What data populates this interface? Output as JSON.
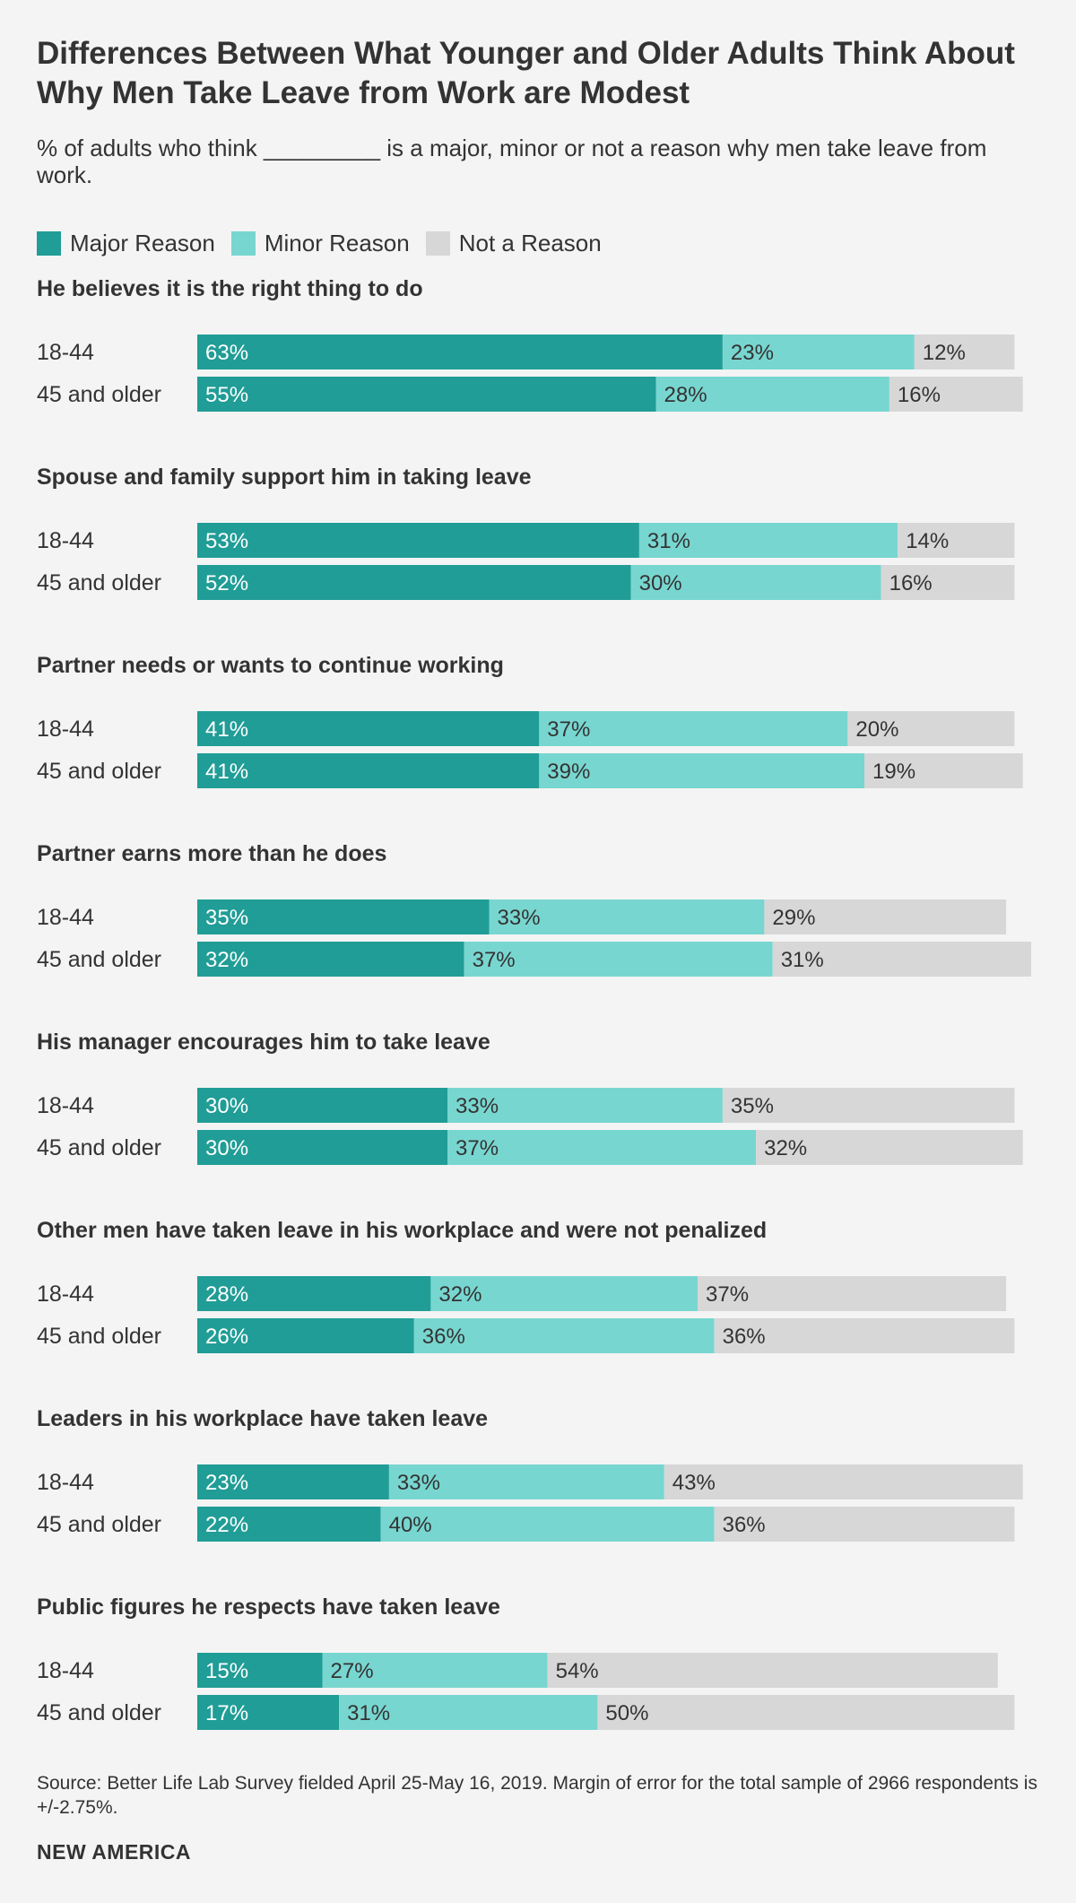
{
  "title": "Differences Between What Younger and Older Adults Think About Why Men Take Leave from Work are Modest",
  "subtitle": "% of adults who think _________ is a major, minor or not a reason why men take leave from work.",
  "legend": [
    {
      "label": "Major Reason",
      "color": "#209d96"
    },
    {
      "label": "Minor Reason",
      "color": "#78d6d0"
    },
    {
      "label": "Not a Reason",
      "color": "#d7d7d7"
    }
  ],
  "source": "Source: Better Life Lab Survey fielded April 25-May 16, 2019. Margin of error for the total sample of 2966 respondents is +/-2.75%.",
  "footer": "NEW AMERICA",
  "chart_data": {
    "type": "bar",
    "orientation": "horizontal-stacked",
    "series_names": [
      "Major Reason",
      "Minor Reason",
      "Not a Reason"
    ],
    "series_colors": [
      "#209d96",
      "#78d6d0",
      "#d7d7d7"
    ],
    "groups": [
      {
        "title": "He believes it is the right thing to do",
        "rows": [
          {
            "label": "18-44",
            "values": [
              63,
              23,
              12
            ]
          },
          {
            "label": "45 and older",
            "values": [
              55,
              28,
              16
            ]
          }
        ]
      },
      {
        "title": "Spouse and family support him in taking leave",
        "rows": [
          {
            "label": "18-44",
            "values": [
              53,
              31,
              14
            ]
          },
          {
            "label": "45 and older",
            "values": [
              52,
              30,
              16
            ]
          }
        ]
      },
      {
        "title": "Partner needs or wants to continue working",
        "rows": [
          {
            "label": "18-44",
            "values": [
              41,
              37,
              20
            ]
          },
          {
            "label": "45 and older",
            "values": [
              41,
              39,
              19
            ]
          }
        ]
      },
      {
        "title": "Partner earns more than he does",
        "rows": [
          {
            "label": "18-44",
            "values": [
              35,
              33,
              29
            ]
          },
          {
            "label": "45 and older",
            "values": [
              32,
              37,
              31
            ]
          }
        ]
      },
      {
        "title": "His manager encourages him to take leave",
        "rows": [
          {
            "label": "18-44",
            "values": [
              30,
              33,
              35
            ]
          },
          {
            "label": "45 and older",
            "values": [
              30,
              37,
              32
            ]
          }
        ]
      },
      {
        "title": "Other men have taken leave in his workplace and were not penalized",
        "rows": [
          {
            "label": "18-44",
            "values": [
              28,
              32,
              37
            ]
          },
          {
            "label": "45 and older",
            "values": [
              26,
              36,
              36
            ]
          }
        ]
      },
      {
        "title": "Leaders in his workplace have taken leave",
        "rows": [
          {
            "label": "18-44",
            "values": [
              23,
              33,
              43
            ]
          },
          {
            "label": "45 and older",
            "values": [
              22,
              40,
              36
            ]
          }
        ]
      },
      {
        "title": "Public figures he respects have taken leave",
        "rows": [
          {
            "label": "18-44",
            "values": [
              15,
              27,
              54
            ]
          },
          {
            "label": "45 and older",
            "values": [
              17,
              31,
              50
            ]
          }
        ]
      }
    ]
  }
}
